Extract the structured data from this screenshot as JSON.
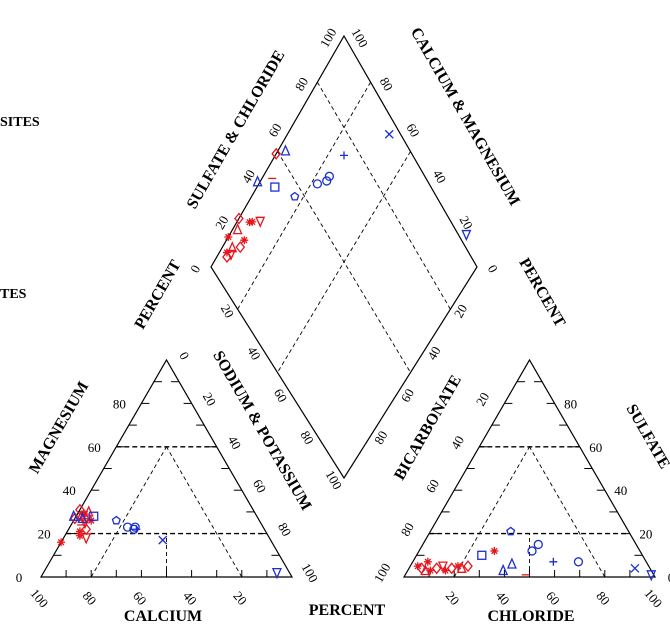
{
  "chart_data": {
    "type": "scatter",
    "subtype": "piper-trilinear",
    "colors": {
      "red": "#e8141c",
      "blue": "#1b2fd0",
      "frame": "#000000"
    },
    "labels": {
      "calcium": "CALCIUM",
      "chloride": "CHLORIDE",
      "magnesium": "MAGNESIUM",
      "sodium_potassium": "SODIUM & POTASSIUM",
      "bicarbonate": "BICARBONATE",
      "sulfate": "SULFATE",
      "sulfate_chloride": "SULFATE & CHLORIDE",
      "calcium_magnesium": "CALCIUM & MAGNESIUM",
      "percent_bottom": "PERCENT",
      "percent_left": "PERCENT",
      "percent_right": "PERCENT",
      "legend_fragment_1": "SITES",
      "legend_fragment_2": "TES"
    },
    "ticks": {
      "cation_ca": [
        "100",
        "80",
        "60",
        "40",
        "20"
      ],
      "cation_mg": [
        "0",
        "20",
        "40",
        "60",
        "80"
      ],
      "cation_na": [
        "0",
        "20",
        "40",
        "60",
        "80",
        "100"
      ],
      "anion_cl": [
        "20",
        "40",
        "60",
        "80",
        "100"
      ],
      "anion_hco3": [
        "100",
        "80",
        "60",
        "40",
        "20"
      ],
      "anion_so4": [
        "0",
        "20",
        "40",
        "60",
        "80"
      ],
      "diamond_so4cl": [
        "0",
        "20",
        "40",
        "60",
        "80",
        "100"
      ],
      "diamond_camg": [
        "100",
        "80",
        "60",
        "40",
        "20",
        "0"
      ],
      "diamond_lower_left": [
        "20",
        "40",
        "60",
        "80",
        "100"
      ],
      "diamond_lower_right": [
        "20",
        "40",
        "60",
        "80"
      ]
    },
    "series": [
      {
        "color": "red",
        "marker": "mixed",
        "cations": [
          {
            "ca": 69,
            "mg": 27,
            "m": "diamond"
          },
          {
            "ca": 68,
            "mg": 29,
            "m": "star"
          },
          {
            "ca": 70,
            "mg": 25,
            "m": "tri-down"
          },
          {
            "ca": 66,
            "mg": 30,
            "m": "tri-up"
          },
          {
            "ca": 71,
            "mg": 22,
            "m": "diamond"
          },
          {
            "ca": 67,
            "mg": 26,
            "m": "star"
          },
          {
            "ca": 70,
            "mg": 28,
            "m": "tri-up"
          },
          {
            "ca": 69,
            "mg": 31,
            "m": "diamond"
          },
          {
            "ca": 74,
            "mg": 21,
            "m": "star"
          },
          {
            "ca": 75,
            "mg": 19,
            "m": "star"
          },
          {
            "ca": 73,
            "mg": 18,
            "m": "tri-down"
          },
          {
            "ca": 84,
            "mg": 16,
            "m": "star"
          },
          {
            "ca": 72,
            "mg": 24,
            "m": "dash"
          },
          {
            "ca": 73,
            "mg": 27,
            "m": "diamond"
          }
        ],
        "anions": [
          {
            "cl": 3,
            "so4": 5,
            "m": "star"
          },
          {
            "cl": 5,
            "so4": 4,
            "m": "diamond"
          },
          {
            "cl": 7,
            "so4": 3,
            "m": "tri-up"
          },
          {
            "cl": 9,
            "so4": 3,
            "m": "star"
          },
          {
            "cl": 11,
            "so4": 4,
            "m": "diamond"
          },
          {
            "cl": 13,
            "so4": 5,
            "m": "tri-down"
          },
          {
            "cl": 15,
            "so4": 3,
            "m": "star"
          },
          {
            "cl": 17,
            "so4": 4,
            "m": "diamond"
          },
          {
            "cl": 19,
            "so4": 5,
            "m": "star"
          },
          {
            "cl": 21,
            "so4": 4,
            "m": "tri-up"
          },
          {
            "cl": 23,
            "so4": 5,
            "m": "diamond"
          },
          {
            "cl": 6,
            "so4": 7,
            "m": "star"
          },
          {
            "cl": 30,
            "so4": 12,
            "m": "star"
          },
          {
            "cl": 48,
            "so4": 1,
            "m": "dash"
          }
        ]
      },
      {
        "color": "blue",
        "marker": "mixed",
        "cations": [
          {
            "ca": 73,
            "mg": 28,
            "m": "tri-up"
          },
          {
            "ca": 70,
            "mg": 27,
            "m": "tri-up"
          },
          {
            "ca": 65,
            "mg": 28,
            "m": "square"
          },
          {
            "ca": 57,
            "mg": 26,
            "m": "pentagon"
          },
          {
            "ca": 54,
            "mg": 23,
            "m": "circle"
          },
          {
            "ca": 52,
            "mg": 22,
            "m": "circle"
          },
          {
            "ca": 51,
            "mg": 23,
            "m": "circle"
          },
          {
            "ca": 51,
            "mg": 22,
            "m": "plus"
          },
          {
            "ca": 43,
            "mg": 17,
            "m": "x"
          },
          {
            "ca": 5,
            "mg": 2,
            "m": "tri-down"
          }
        ],
        "anions": [
          {
            "cl": 26,
            "so4": 10,
            "m": "square"
          },
          {
            "cl": 32,
            "so4": 21,
            "m": "pentagon"
          },
          {
            "cl": 38,
            "so4": 3,
            "m": "tri-up"
          },
          {
            "cl": 40,
            "so4": 6,
            "m": "tri-up"
          },
          {
            "cl": 45,
            "so4": 12,
            "m": "circle"
          },
          {
            "cl": 46,
            "so4": 15,
            "m": "circle"
          },
          {
            "cl": 56,
            "so4": 7,
            "m": "plus"
          },
          {
            "cl": 66,
            "so4": 7,
            "m": "circle"
          },
          {
            "cl": 90,
            "so4": 4,
            "m": "x"
          },
          {
            "cl": 98,
            "so4": 1,
            "m": "tri-down"
          }
        ]
      }
    ]
  }
}
